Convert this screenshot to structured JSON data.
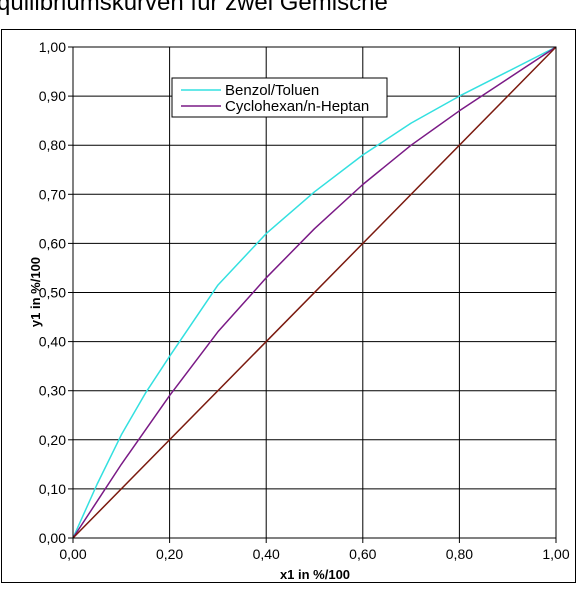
{
  "chart_data": {
    "type": "line",
    "title": "",
    "partial_title_visible": "quilibriumskurven für zwei Gemische",
    "xlabel": "x1 in %/100",
    "ylabel": "y1 in %/100",
    "xlim": [
      0,
      1
    ],
    "ylim": [
      0,
      1
    ],
    "x_ticks": [
      "0,00",
      "0,20",
      "0,40",
      "0,60",
      "0,80",
      "1,00"
    ],
    "y_ticks": [
      "0,00",
      "0,10",
      "0,20",
      "0,30",
      "0,40",
      "0,50",
      "0,60",
      "0,70",
      "0,80",
      "0,90",
      "1,00"
    ],
    "grid": true,
    "legend_position": "top-center",
    "series": [
      {
        "name": "Benzol/Toluen",
        "color": "#33e0e0",
        "x": [
          0,
          0.05,
          0.1,
          0.15,
          0.2,
          0.3,
          0.4,
          0.5,
          0.6,
          0.7,
          0.8,
          0.9,
          1.0
        ],
        "y": [
          0,
          0.11,
          0.21,
          0.295,
          0.37,
          0.515,
          0.62,
          0.705,
          0.78,
          0.845,
          0.9,
          0.95,
          1.0
        ]
      },
      {
        "name": "Cyclohexan/n-Heptan",
        "color": "#7a1a86",
        "x": [
          0,
          0.05,
          0.1,
          0.2,
          0.3,
          0.4,
          0.5,
          0.6,
          0.7,
          0.8,
          0.9,
          1.0
        ],
        "y": [
          0,
          0.075,
          0.15,
          0.29,
          0.42,
          0.53,
          0.63,
          0.72,
          0.8,
          0.87,
          0.935,
          1.0
        ]
      },
      {
        "name": "",
        "color": "#7b1a0f",
        "x": [
          0,
          1
        ],
        "y": [
          0,
          1
        ]
      }
    ]
  }
}
